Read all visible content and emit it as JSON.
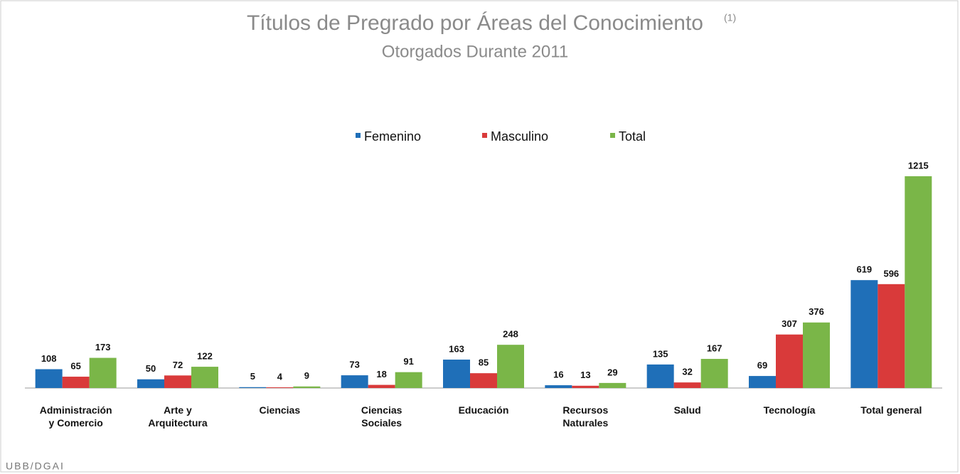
{
  "chart_data": {
    "type": "bar",
    "title": "Títulos de Pregrado por Áreas del Conocimiento",
    "title_note": "(1)",
    "subtitle": "Otorgados Durante 2011",
    "footer": "UBB/DGAI",
    "categories": [
      "Administración\ny Comercio",
      "Arte y\nArquitectura",
      "Ciencias",
      "Ciencias\nSociales",
      "Educación",
      "Recursos\nNaturales",
      "Salud",
      "Tecnología",
      "Total general"
    ],
    "series": [
      {
        "name": "Femenino",
        "color": "#1f6fb8",
        "values": [
          108,
          50,
          5,
          73,
          163,
          16,
          135,
          69,
          619
        ]
      },
      {
        "name": "Masculino",
        "color": "#d93a3a",
        "values": [
          65,
          72,
          4,
          18,
          85,
          13,
          32,
          307,
          596
        ]
      },
      {
        "name": "Total",
        "color": "#7ab648",
        "values": [
          173,
          122,
          9,
          91,
          248,
          29,
          167,
          376,
          1215
        ]
      }
    ],
    "legend": "top"
  }
}
